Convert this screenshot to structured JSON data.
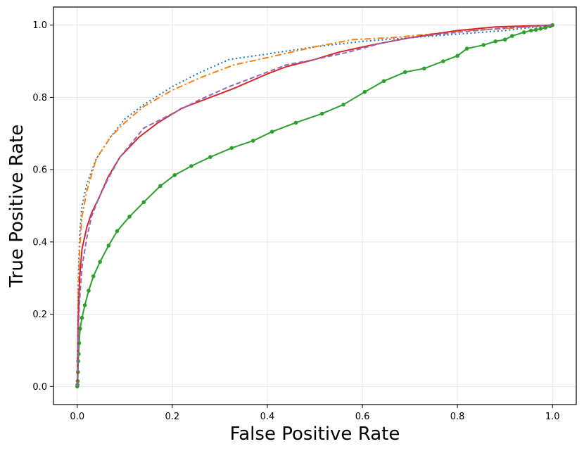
{
  "chart_data": {
    "type": "line",
    "title": "",
    "xlabel": "False Positive Rate",
    "ylabel": "True Positive Rate",
    "xlim": [
      -0.05,
      1.05
    ],
    "ylim": [
      -0.05,
      1.05
    ],
    "grid": true,
    "xticks": [
      0.0,
      0.2,
      0.4,
      0.6,
      0.8,
      1.0
    ],
    "yticks": [
      0.0,
      0.2,
      0.4,
      0.6,
      0.8,
      1.0
    ],
    "xtick_labels": [
      "0.0",
      "0.2",
      "0.4",
      "0.6",
      "0.8",
      "1.0"
    ],
    "ytick_labels": [
      "0.0",
      "0.2",
      "0.4",
      "0.6",
      "0.8",
      "1.0"
    ],
    "series": [
      {
        "color": "#1f77b4",
        "linestyle": "dotted",
        "marker": false,
        "x": [
          0,
          0.002,
          0.005,
          0.01,
          0.02,
          0.04,
          0.07,
          0.1,
          0.14,
          0.2,
          0.26,
          0.32,
          0.4,
          0.5,
          0.6,
          0.7,
          0.8,
          0.9,
          1.0
        ],
        "y": [
          0,
          0.28,
          0.42,
          0.5,
          0.56,
          0.63,
          0.69,
          0.74,
          0.78,
          0.83,
          0.87,
          0.905,
          0.92,
          0.94,
          0.955,
          0.965,
          0.975,
          0.985,
          1.0
        ]
      },
      {
        "color": "#ff7f0e",
        "linestyle": "dashdot",
        "marker": false,
        "x": [
          0,
          0.002,
          0.005,
          0.01,
          0.02,
          0.04,
          0.07,
          0.1,
          0.14,
          0.2,
          0.26,
          0.33,
          0.4,
          0.5,
          0.58,
          0.66,
          0.74,
          0.82,
          0.9,
          1.0
        ],
        "y": [
          0,
          0.24,
          0.38,
          0.47,
          0.54,
          0.63,
          0.69,
          0.73,
          0.775,
          0.82,
          0.855,
          0.89,
          0.91,
          0.94,
          0.96,
          0.965,
          0.975,
          0.985,
          0.99,
          1.0
        ]
      },
      {
        "color": "#2ca02c",
        "linestyle": "solid",
        "marker": true,
        "x": [
          0,
          0.0005,
          0.001,
          0.0015,
          0.002,
          0.003,
          0.004,
          0.006,
          0.01,
          0.016,
          0.024,
          0.034,
          0.048,
          0.066,
          0.084,
          0.11,
          0.14,
          0.175,
          0.205,
          0.24,
          0.28,
          0.325,
          0.37,
          0.41,
          0.46,
          0.515,
          0.56,
          0.605,
          0.645,
          0.69,
          0.73,
          0.77,
          0.8,
          0.82,
          0.855,
          0.88,
          0.9,
          0.915,
          0.94,
          0.955,
          0.965,
          0.975,
          0.985,
          0.995,
          1.0
        ],
        "y": [
          0,
          0.005,
          0.015,
          0.04,
          0.07,
          0.09,
          0.12,
          0.16,
          0.19,
          0.225,
          0.265,
          0.305,
          0.345,
          0.39,
          0.43,
          0.47,
          0.51,
          0.555,
          0.585,
          0.61,
          0.635,
          0.66,
          0.68,
          0.705,
          0.73,
          0.755,
          0.78,
          0.815,
          0.845,
          0.87,
          0.88,
          0.9,
          0.915,
          0.935,
          0.945,
          0.955,
          0.96,
          0.97,
          0.98,
          0.985,
          0.987,
          0.99,
          0.993,
          0.997,
          1.0
        ]
      },
      {
        "color": "#d62728",
        "linestyle": "solid",
        "marker": false,
        "x": [
          0,
          0.002,
          0.005,
          0.01,
          0.02,
          0.03,
          0.045,
          0.065,
          0.09,
          0.13,
          0.17,
          0.22,
          0.27,
          0.33,
          0.4,
          0.44,
          0.5,
          0.55,
          0.62,
          0.7,
          0.8,
          0.88,
          1.0
        ],
        "y": [
          0,
          0.18,
          0.3,
          0.38,
          0.44,
          0.48,
          0.52,
          0.58,
          0.635,
          0.69,
          0.73,
          0.77,
          0.795,
          0.825,
          0.865,
          0.885,
          0.905,
          0.925,
          0.945,
          0.965,
          0.985,
          0.995,
          1.0
        ]
      },
      {
        "color": "#9467bd",
        "linestyle": "dashed",
        "marker": false,
        "x": [
          0,
          0.002,
          0.005,
          0.01,
          0.02,
          0.03,
          0.045,
          0.065,
          0.09,
          0.14,
          0.2,
          0.26,
          0.32,
          0.38,
          0.44,
          0.5,
          0.57,
          0.64,
          0.7,
          0.8,
          0.88,
          1.0
        ],
        "y": [
          0,
          0.14,
          0.24,
          0.33,
          0.41,
          0.47,
          0.52,
          0.575,
          0.635,
          0.715,
          0.755,
          0.795,
          0.83,
          0.86,
          0.89,
          0.905,
          0.925,
          0.95,
          0.965,
          0.98,
          0.99,
          1.0
        ]
      }
    ]
  }
}
